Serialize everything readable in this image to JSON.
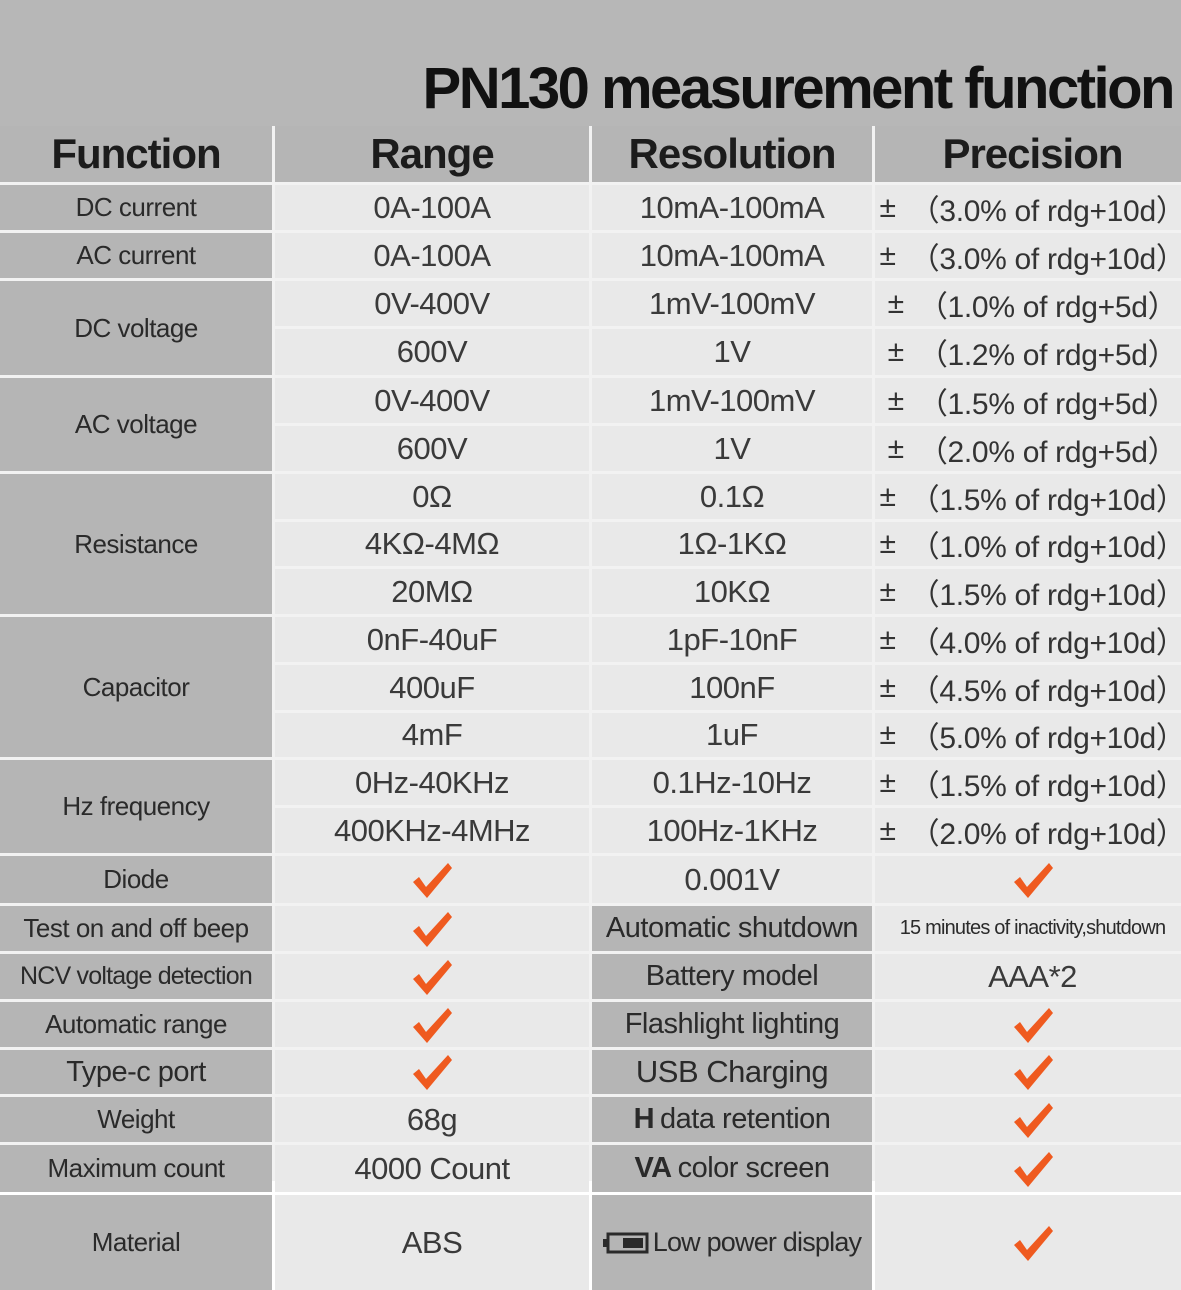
{
  "title": "PN130 measurement function",
  "headers": [
    "Function",
    "Range",
    "Resolution",
    "Precision"
  ],
  "measurements": [
    {
      "function": "DC current",
      "range": "0A-100A",
      "resolution": "10mA-100mA",
      "precision": "（3.0% of rdg+10d）"
    },
    {
      "function": "AC current",
      "range": "0A-100A",
      "resolution": "10mA-100mA",
      "precision": "（3.0% of rdg+10d）"
    },
    {
      "function": "DC voltage",
      "rows": [
        {
          "range": "0V-400V",
          "resolution": "1mV-100mV",
          "precision": "（1.0% of rdg+5d）"
        },
        {
          "range": "600V",
          "resolution": "1V",
          "precision": "（1.2% of rdg+5d）"
        }
      ]
    },
    {
      "function": "AC voltage",
      "rows": [
        {
          "range": "0V-400V",
          "resolution": "1mV-100mV",
          "precision": "（1.5% of rdg+5d）"
        },
        {
          "range": "600V",
          "resolution": "1V",
          "precision": "（2.0% of rdg+5d）"
        }
      ]
    },
    {
      "function": "Resistance",
      "rows": [
        {
          "range": "0Ω",
          "resolution": "0.1Ω",
          "precision": "（1.5% of rdg+10d）"
        },
        {
          "range": "4KΩ-4MΩ",
          "resolution": "1Ω-1KΩ",
          "precision": "（1.0% of rdg+10d）"
        },
        {
          "range": "20MΩ",
          "resolution": "10KΩ",
          "precision": "（1.5% of rdg+10d）"
        }
      ]
    },
    {
      "function": "Capacitor",
      "rows": [
        {
          "range": "0nF-40uF",
          "resolution": "1pF-10nF",
          "precision": "（4.0% of rdg+10d）"
        },
        {
          "range": "400uF",
          "resolution": "100nF",
          "precision": "（4.5% of rdg+10d）"
        },
        {
          "range": "4mF",
          "resolution": "1uF",
          "precision": "（5.0% of rdg+10d）"
        }
      ]
    },
    {
      "function": "Hz frequency",
      "rows": [
        {
          "range": "0Hz-40KHz",
          "resolution": "0.1Hz-10Hz",
          "precision": "（1.5% of rdg+10d）"
        },
        {
          "range": "400KHz-4MHz",
          "resolution": "100Hz-1KHz",
          "precision": "（2.0% of rdg+10d）"
        }
      ]
    }
  ],
  "plus_minus": "±",
  "diode": {
    "label": "Diode",
    "resolution": "0.001V"
  },
  "features_left": [
    {
      "label": "Test on and off beep"
    },
    {
      "label": "NCV voltage detection"
    },
    {
      "label": "Automatic range"
    },
    {
      "label": "Type-c port"
    }
  ],
  "specs_left": [
    {
      "label": "Weight",
      "value": "68g"
    },
    {
      "label": "Maximum count",
      "value": "4000 Count"
    },
    {
      "label": "Material",
      "value": "ABS"
    }
  ],
  "features_right": [
    {
      "label": "Automatic shutdown",
      "value": "15 minutes of inactivity,shutdown"
    },
    {
      "label": "Battery model",
      "value": "AAA*2"
    },
    {
      "label": "Flashlight lighting"
    },
    {
      "label": "USB Charging"
    },
    {
      "prefix": "H",
      "label": "data retention"
    },
    {
      "prefix": "VA",
      "label": "color screen"
    },
    {
      "label": "Low power display"
    }
  ],
  "colors": {
    "check": "#ef5a1f",
    "header_bg": "#b5b5b5",
    "cell_bg": "#e9e9e9",
    "grid_line": "#f2f2f2"
  },
  "icons": {
    "check": "checkmark-icon",
    "battery": "low-battery-icon"
  }
}
